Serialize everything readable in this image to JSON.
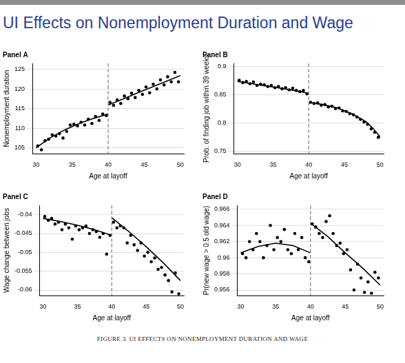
{
  "page_title": "UI Effects on Nonemployment Duration and Wage",
  "caption": "FIGURE 3. UI EFFECTS ON NONEMPLOYMENT DURATION AND WAGE",
  "chart_data": [
    {
      "type": "scatter",
      "title": "Panel A",
      "x_label": "Age at layoff",
      "y_label": "Nonemployment duration",
      "xlim": [
        29.5,
        50.5
      ],
      "xticks": [
        30,
        35,
        40,
        45,
        50
      ],
      "ylim": [
        103.5,
        126.5
      ],
      "yticks": [
        105,
        110,
        115,
        120,
        125
      ],
      "grid": "y",
      "cutoff": 40,
      "series": [
        {
          "type": "scatter",
          "marker": "circle",
          "color": "#000000",
          "x": [
            30.25,
            30.75,
            31.25,
            31.75,
            32.25,
            32.75,
            33.25,
            33.75,
            34.25,
            34.75,
            35.25,
            35.75,
            36.25,
            36.75,
            37.25,
            37.75,
            38.25,
            38.75,
            39.25,
            39.75,
            40.25,
            40.75,
            41.25,
            41.75,
            42.25,
            42.75,
            43.25,
            43.75,
            44.25,
            44.75,
            45.25,
            45.75,
            46.25,
            46.75,
            47.25,
            47.75,
            48.25,
            48.75,
            49.25,
            49.75
          ],
          "values": [
            105.5,
            104.5,
            106.8,
            107.2,
            108.3,
            108.0,
            108.6,
            107.5,
            109.2,
            110.8,
            111.0,
            110.6,
            111.5,
            110.8,
            112.3,
            111.2,
            113.0,
            112.0,
            113.6,
            113.2,
            116.6,
            115.8,
            117.2,
            116.3,
            118.2,
            117.5,
            118.9,
            117.8,
            119.6,
            118.6,
            120.5,
            119.0,
            121.2,
            120.0,
            122.3,
            121.0,
            123.1,
            121.8,
            124.2,
            121.8
          ]
        },
        {
          "type": "line",
          "color": "#000000",
          "x": [
            30,
            32,
            34,
            36,
            38,
            40
          ],
          "values": [
            105.0,
            107.6,
            109.6,
            111.2,
            112.5,
            113.6
          ]
        },
        {
          "type": "line",
          "color": "#000000",
          "x": [
            40,
            42,
            44,
            46,
            48,
            50
          ],
          "values": [
            115.9,
            117.4,
            118.9,
            120.4,
            121.9,
            123.4
          ]
        }
      ]
    },
    {
      "type": "scatter",
      "title": "Panel B",
      "x_label": "Age at layoff",
      "y_label": "Prob. of finding job within 39 weeks",
      "xlim": [
        29.5,
        50.5
      ],
      "xticks": [
        30,
        35,
        40,
        45,
        50
      ],
      "ylim": [
        0.745,
        0.905
      ],
      "yticks": [
        0.75,
        0.8,
        0.85,
        0.9
      ],
      "grid": "y",
      "cutoff": 40,
      "series": [
        {
          "type": "scatter",
          "marker": "circle",
          "color": "#000000",
          "x": [
            30.25,
            30.75,
            31.25,
            31.75,
            32.25,
            32.75,
            33.25,
            33.75,
            34.25,
            34.75,
            35.25,
            35.75,
            36.25,
            36.75,
            37.25,
            37.75,
            38.25,
            38.75,
            39.25,
            39.75,
            40.25,
            40.75,
            41.25,
            41.75,
            42.25,
            42.75,
            43.25,
            43.75,
            44.25,
            44.75,
            45.25,
            45.75,
            46.25,
            46.75,
            47.25,
            47.75,
            48.25,
            48.75,
            49.25,
            49.75
          ],
          "values": [
            0.875,
            0.871,
            0.873,
            0.869,
            0.872,
            0.866,
            0.868,
            0.867,
            0.864,
            0.866,
            0.862,
            0.864,
            0.86,
            0.862,
            0.858,
            0.861,
            0.857,
            0.855,
            0.857,
            0.851,
            0.836,
            0.834,
            0.835,
            0.831,
            0.832,
            0.828,
            0.829,
            0.825,
            0.826,
            0.821,
            0.82,
            0.816,
            0.814,
            0.81,
            0.806,
            0.801,
            0.797,
            0.789,
            0.783,
            0.774
          ]
        },
        {
          "type": "line",
          "color": "#000000",
          "x": [
            30,
            32,
            34,
            36,
            38,
            40
          ],
          "values": [
            0.873,
            0.869,
            0.865,
            0.861,
            0.857,
            0.852
          ]
        },
        {
          "type": "line",
          "color": "#000000",
          "x": [
            40,
            42,
            44,
            46,
            48,
            49,
            50
          ],
          "values": [
            0.836,
            0.832,
            0.826,
            0.816,
            0.802,
            0.79,
            0.775
          ]
        }
      ]
    },
    {
      "type": "scatter",
      "title": "Panel C",
      "x_label": "Age at layoff",
      "y_label": "Wage change between jobs",
      "xlim": [
        29.5,
        50.5
      ],
      "xticks": [
        30,
        35,
        40,
        45,
        50
      ],
      "ylim": [
        -0.0615,
        -0.0375
      ],
      "yticks": [
        -0.06,
        -0.055,
        -0.05,
        -0.045,
        -0.04
      ],
      "grid": "y",
      "cutoff": 40,
      "series": [
        {
          "type": "scatter",
          "marker": "circle",
          "color": "#000000",
          "x": [
            30.25,
            30.75,
            31.25,
            31.75,
            32.25,
            32.75,
            33.25,
            33.75,
            34.25,
            34.75,
            35.25,
            35.75,
            36.25,
            36.75,
            37.25,
            37.75,
            38.25,
            38.75,
            39.25,
            39.75,
            40.25,
            40.75,
            41.25,
            41.75,
            42.25,
            42.75,
            43.25,
            43.75,
            44.25,
            44.75,
            45.25,
            45.75,
            46.25,
            46.75,
            47.25,
            47.75,
            48.25,
            48.75,
            49.25,
            49.75
          ],
          "values": [
            -0.0405,
            -0.0415,
            -0.041,
            -0.0425,
            -0.042,
            -0.044,
            -0.0425,
            -0.0435,
            -0.0465,
            -0.043,
            -0.044,
            -0.0435,
            -0.043,
            -0.045,
            -0.044,
            -0.0445,
            -0.046,
            -0.045,
            -0.0505,
            -0.0455,
            -0.042,
            -0.0435,
            -0.043,
            -0.0435,
            -0.0475,
            -0.0455,
            -0.048,
            -0.0495,
            -0.0475,
            -0.051,
            -0.05,
            -0.0525,
            -0.0515,
            -0.0545,
            -0.054,
            -0.056,
            -0.0575,
            -0.0605,
            -0.0555,
            -0.061
          ]
        },
        {
          "type": "line",
          "color": "#000000",
          "x": [
            30,
            32.5,
            35,
            37.5,
            40
          ],
          "values": [
            -0.041,
            -0.0418,
            -0.0428,
            -0.044,
            -0.0455
          ]
        },
        {
          "type": "line",
          "color": "#000000",
          "x": [
            40,
            42.5,
            45,
            47.5,
            50
          ],
          "values": [
            -0.0408,
            -0.0445,
            -0.0485,
            -0.0528,
            -0.0575
          ]
        }
      ]
    },
    {
      "type": "scatter",
      "title": "Panel D",
      "x_label": "Age at layoff",
      "y_label": "Pr(new wage > 0.5 old wage)",
      "xlim": [
        29.5,
        50.5
      ],
      "xticks": [
        30,
        35,
        40,
        45,
        50
      ],
      "ylim": [
        0.9553,
        0.9665
      ],
      "yticks": [
        0.956,
        0.958,
        0.96,
        0.962,
        0.964,
        0.966
      ],
      "grid": "y",
      "cutoff": 40,
      "series": [
        {
          "type": "scatter",
          "marker": "circle",
          "color": "#000000",
          "x": [
            30.25,
            30.75,
            31.25,
            31.75,
            32.25,
            32.75,
            33.25,
            33.75,
            34.25,
            34.75,
            35.25,
            35.75,
            36.25,
            36.75,
            37.25,
            37.75,
            38.25,
            38.75,
            39.25,
            39.75,
            40.25,
            40.75,
            41.25,
            41.75,
            42.25,
            42.75,
            43.25,
            43.75,
            44.25,
            44.75,
            45.25,
            45.75,
            46.25,
            46.75,
            47.25,
            47.75,
            48.25,
            48.75,
            49.25,
            49.75
          ],
          "values": [
            0.9605,
            0.96,
            0.962,
            0.961,
            0.963,
            0.962,
            0.96,
            0.9615,
            0.964,
            0.961,
            0.9625,
            0.962,
            0.9635,
            0.961,
            0.9605,
            0.963,
            0.961,
            0.9625,
            0.96,
            0.9595,
            0.9642,
            0.9638,
            0.963,
            0.9625,
            0.9645,
            0.9652,
            0.963,
            0.9615,
            0.9618,
            0.9605,
            0.961,
            0.9585,
            0.956,
            0.9592,
            0.9575,
            0.9557,
            0.957,
            0.9556,
            0.9582,
            0.9575
          ]
        },
        {
          "type": "line",
          "color": "#000000",
          "x": [
            30,
            32.5,
            35,
            37.5,
            40
          ],
          "values": [
            0.9606,
            0.9614,
            0.9618,
            0.9615,
            0.9606
          ]
        },
        {
          "type": "line",
          "color": "#000000",
          "x": [
            40,
            42.5,
            45,
            47.5,
            50
          ],
          "values": [
            0.9643,
            0.9626,
            0.9606,
            0.9587,
            0.9566
          ]
        }
      ]
    }
  ]
}
